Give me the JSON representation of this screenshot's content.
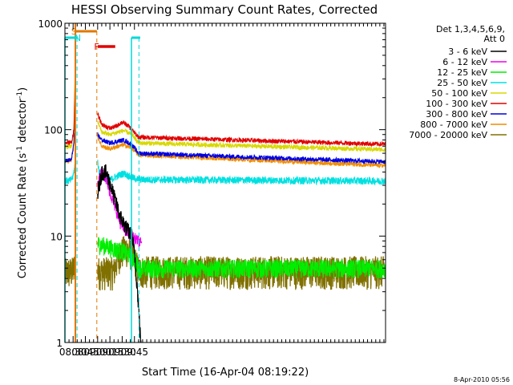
{
  "chart_data": {
    "type": "line",
    "title": "HESSI Observing Summary Count Rates, Corrected",
    "xlabel": "Start Time (16-Apr-04 08:19:22)",
    "ylabel_main": "Corrected Count Rate (s",
    "ylabel_sup1": "-1",
    "ylabel_mid": " detector",
    "ylabel_sup2": "-1",
    "ylabel_end": ")",
    "yscale": "log",
    "ylim": [
      1,
      1000
    ],
    "xlim_minutes": [
      500,
      892
    ],
    "x_ticks": [
      {
        "label": "08:30",
        "minute": 510
      },
      {
        "label": "08:45",
        "minute": 525
      },
      {
        "label": "09:00",
        "minute": 540
      },
      {
        "label": "09:15",
        "minute": 555
      },
      {
        "label": "09:30",
        "minute": 570
      },
      {
        "label": "09:45",
        "minute": 585
      }
    ],
    "y_ticks": [
      {
        "label": "1",
        "value": 1
      },
      {
        "label": "10",
        "value": 10
      },
      {
        "label": "100",
        "value": 100
      },
      {
        "label": "1000",
        "value": 1000
      }
    ],
    "legend_title": "Det 1,3,4,5,6,9,",
    "legend_subtitle": "Att 0",
    "legend_placement": "right",
    "timestamp": "8-Apr-2010 05:56",
    "flag_labels": [
      {
        "label": "S",
        "color": "#e07800"
      },
      {
        "label": "N",
        "color": "#00d8d8"
      },
      {
        "label": "F",
        "color": "#e00000"
      }
    ],
    "series": [
      {
        "name": "3 - 6 keV",
        "color": "#000000"
      },
      {
        "name": "6 - 12 keV",
        "color": "#ee00ee"
      },
      {
        "name": "12 - 25 keV",
        "color": "#00ee00"
      },
      {
        "name": "25 - 50 keV",
        "color": "#00e0e0"
      },
      {
        "name": "50 - 100 keV",
        "color": "#d8d800"
      },
      {
        "name": "100 - 300 keV",
        "color": "#e00000"
      },
      {
        "name": "300 - 800 keV",
        "color": "#0000e0"
      },
      {
        "name": "800 - 7000 keV",
        "color": "#f08c00"
      },
      {
        "name": "7000 - 20000 keV",
        "color": "#807000"
      }
    ]
  }
}
